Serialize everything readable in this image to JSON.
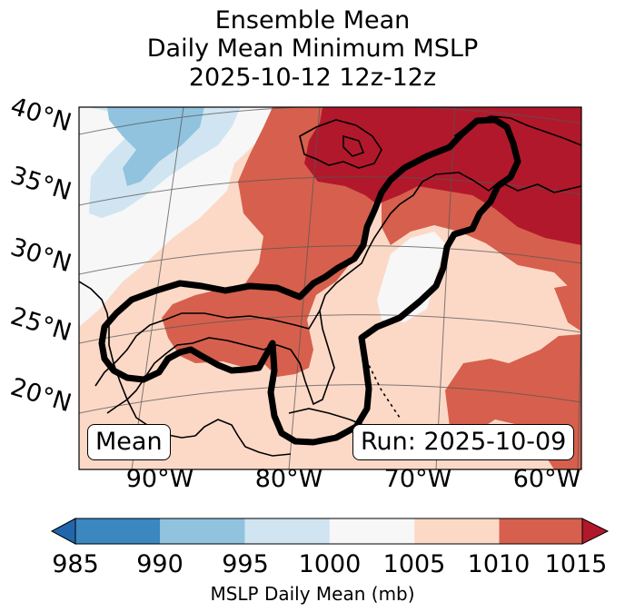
{
  "title": {
    "line1": "Ensemble Mean",
    "line2": "Daily Mean Minimum MSLP",
    "line3": "2025-10-12 12z-12z"
  },
  "lat_labels": [
    "40°N",
    "35°N",
    "30°N",
    "25°N",
    "20°N"
  ],
  "lon_labels": [
    "90°W",
    "80°W",
    "70°W",
    "60°W"
  ],
  "stamps": {
    "left": "Mean",
    "right": "Run: 2025-10-09"
  },
  "colorbar": {
    "label": "MSLP Daily Mean (mb)",
    "ticks": [
      "985",
      "990",
      "995",
      "1000",
      "1005",
      "1010",
      "1015"
    ],
    "colors": [
      "#3b87c0",
      "#91c3df",
      "#d0e5f1",
      "#f7f7f7",
      "#fcd9c7",
      "#d6604d",
      "#b2182b"
    ],
    "under_color": "#2166ac",
    "over_color": "#b2182b"
  },
  "map_colors": {
    "c990": "#91c3df",
    "c995": "#d0e5f1",
    "c1000": "#f7f7f7",
    "c1005": "#fcd9c7",
    "c1010": "#d6604d",
    "c1015": "#b2182b"
  }
}
